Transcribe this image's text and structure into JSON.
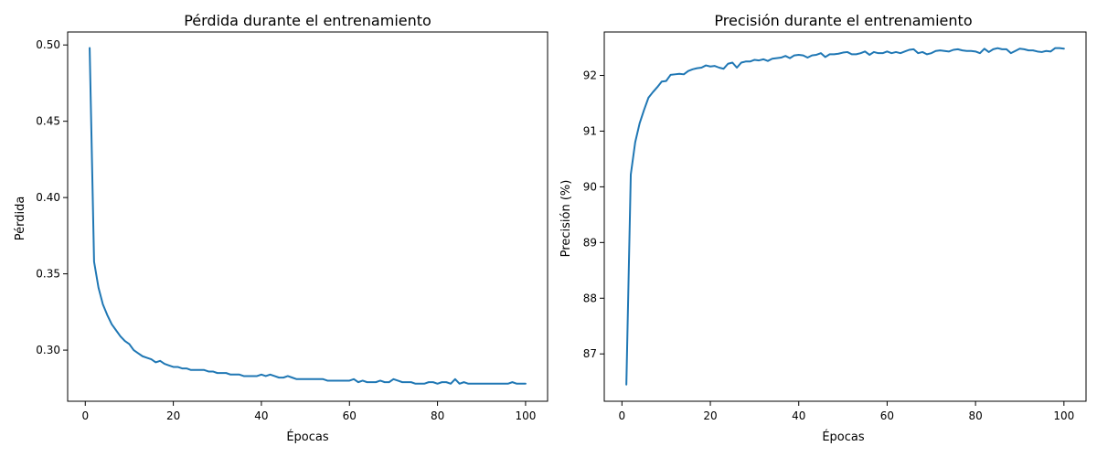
{
  "chart_data": [
    {
      "type": "line",
      "title": "Pérdida durante el entrenamiento",
      "xlabel": "Épocas",
      "ylabel": "Pérdida",
      "xlim": [
        -4,
        105
      ],
      "ylim": [
        0.2665,
        0.5085
      ],
      "xticks": [
        0,
        20,
        40,
        60,
        80,
        100
      ],
      "yticks": [
        0.3,
        0.35,
        0.4,
        0.45,
        0.5
      ],
      "ytick_labels": [
        "0.30",
        "0.35",
        "0.40",
        "0.45",
        "0.50"
      ],
      "grid": false,
      "color": "#1f77b4",
      "series": [
        {
          "x": [
            1,
            2,
            3,
            4,
            5,
            6,
            7,
            8,
            9,
            10,
            11,
            12,
            13,
            14,
            15,
            16,
            17,
            18,
            19,
            20,
            21,
            22,
            23,
            24,
            25,
            26,
            27,
            28,
            29,
            30,
            31,
            32,
            33,
            34,
            35,
            36,
            37,
            38,
            39,
            40,
            41,
            42,
            43,
            44,
            45,
            46,
            47,
            48,
            49,
            50,
            51,
            52,
            53,
            54,
            55,
            56,
            57,
            58,
            59,
            60,
            61,
            62,
            63,
            64,
            65,
            66,
            67,
            68,
            69,
            70,
            71,
            72,
            73,
            74,
            75,
            76,
            77,
            78,
            79,
            80,
            81,
            82,
            83,
            84,
            85,
            86,
            87,
            88,
            89,
            90,
            91,
            92,
            93,
            94,
            95,
            96,
            97,
            98,
            99,
            100
          ],
          "values": [
            0.498,
            0.358,
            0.341,
            0.33,
            0.323,
            0.317,
            0.313,
            0.309,
            0.306,
            0.304,
            0.3,
            0.298,
            0.296,
            0.295,
            0.294,
            0.292,
            0.293,
            0.291,
            0.29,
            0.289,
            0.289,
            0.288,
            0.288,
            0.287,
            0.287,
            0.287,
            0.287,
            0.286,
            0.286,
            0.285,
            0.285,
            0.285,
            0.284,
            0.284,
            0.284,
            0.283,
            0.283,
            0.283,
            0.283,
            0.284,
            0.283,
            0.284,
            0.283,
            0.282,
            0.282,
            0.283,
            0.282,
            0.281,
            0.281,
            0.281,
            0.281,
            0.281,
            0.281,
            0.281,
            0.28,
            0.28,
            0.28,
            0.28,
            0.28,
            0.28,
            0.281,
            0.279,
            0.28,
            0.279,
            0.279,
            0.279,
            0.28,
            0.279,
            0.279,
            0.281,
            0.28,
            0.279,
            0.279,
            0.279,
            0.278,
            0.278,
            0.278,
            0.279,
            0.279,
            0.278,
            0.279,
            0.279,
            0.278,
            0.281,
            0.278,
            0.279,
            0.278,
            0.278,
            0.278,
            0.278,
            0.278,
            0.278,
            0.278,
            0.278,
            0.278,
            0.278,
            0.279,
            0.278,
            0.278,
            0.278
          ]
        }
      ]
    },
    {
      "type": "line",
      "title": "Precisión durante el entrenamiento",
      "xlabel": "Épocas",
      "ylabel": "Precisión (%)",
      "xlim": [
        -4,
        105
      ],
      "ylim": [
        86.15,
        92.78
      ],
      "xticks": [
        0,
        20,
        40,
        60,
        80,
        100
      ],
      "yticks": [
        87,
        88,
        89,
        90,
        91,
        92
      ],
      "ytick_labels": [
        "87",
        "88",
        "89",
        "90",
        "91",
        "92"
      ],
      "grid": false,
      "color": "#1f77b4",
      "series": [
        {
          "x": [
            1,
            2,
            3,
            4,
            5,
            6,
            7,
            8,
            9,
            10,
            11,
            12,
            13,
            14,
            15,
            16,
            17,
            18,
            19,
            20,
            21,
            22,
            23,
            24,
            25,
            26,
            27,
            28,
            29,
            30,
            31,
            32,
            33,
            34,
            35,
            36,
            37,
            38,
            39,
            40,
            41,
            42,
            43,
            44,
            45,
            46,
            47,
            48,
            49,
            50,
            51,
            52,
            53,
            54,
            55,
            56,
            57,
            58,
            59,
            60,
            61,
            62,
            63,
            64,
            65,
            66,
            67,
            68,
            69,
            70,
            71,
            72,
            73,
            74,
            75,
            76,
            77,
            78,
            79,
            80,
            81,
            82,
            83,
            84,
            85,
            86,
            87,
            88,
            89,
            90,
            91,
            92,
            93,
            94,
            95,
            96,
            97,
            98,
            99,
            100
          ],
          "values": [
            86.45,
            90.22,
            90.8,
            91.14,
            91.38,
            91.6,
            91.7,
            91.79,
            91.89,
            91.9,
            92.01,
            92.02,
            92.03,
            92.02,
            92.08,
            92.11,
            92.13,
            92.14,
            92.18,
            92.16,
            92.17,
            92.14,
            92.12,
            92.21,
            92.23,
            92.14,
            92.23,
            92.25,
            92.25,
            92.28,
            92.27,
            92.29,
            92.26,
            92.3,
            92.31,
            92.32,
            92.35,
            92.31,
            92.36,
            92.37,
            92.36,
            92.32,
            92.36,
            92.37,
            92.4,
            92.33,
            92.38,
            92.38,
            92.39,
            92.41,
            92.42,
            92.38,
            92.38,
            92.4,
            92.43,
            92.37,
            92.42,
            92.4,
            92.4,
            92.43,
            92.4,
            92.42,
            92.4,
            92.43,
            92.46,
            92.47,
            92.4,
            92.42,
            92.38,
            92.4,
            92.44,
            92.45,
            92.44,
            92.43,
            92.46,
            92.47,
            92.45,
            92.44,
            92.44,
            92.43,
            92.4,
            92.48,
            92.42,
            92.47,
            92.49,
            92.47,
            92.47,
            92.4,
            92.44,
            92.48,
            92.47,
            92.45,
            92.45,
            92.43,
            92.42,
            92.44,
            92.43,
            92.49,
            92.49,
            92.48
          ]
        }
      ]
    }
  ]
}
